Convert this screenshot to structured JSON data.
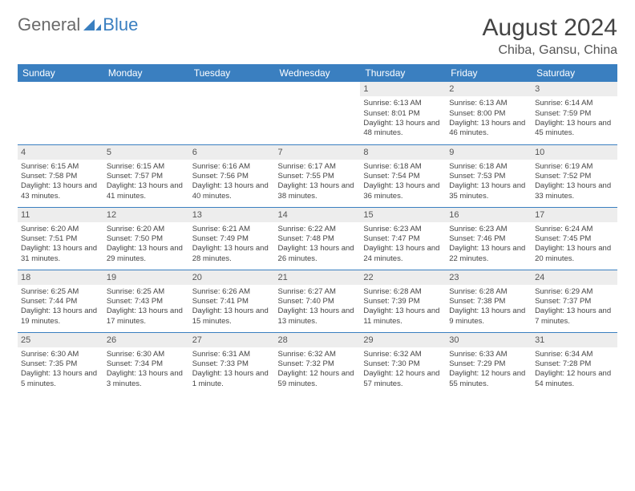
{
  "logo": {
    "part1": "General",
    "part2": "Blue"
  },
  "title": "August 2024",
  "location": "Chiba, Gansu, China",
  "weekdays": [
    "Sunday",
    "Monday",
    "Tuesday",
    "Wednesday",
    "Thursday",
    "Friday",
    "Saturday"
  ],
  "colors": {
    "header_bg": "#3a7fc0",
    "header_fg": "#ffffff",
    "daynum_bg": "#ededed",
    "rule": "#3a7fc0",
    "logo_gray": "#6a6a6a",
    "logo_blue": "#3a7fc0"
  },
  "typography": {
    "title_fontsize": 30,
    "location_fontsize": 16,
    "weekday_fontsize": 12,
    "cell_fontsize": 9.5,
    "daynum_fontsize": 11
  },
  "layout": {
    "first_weekday_index": 4,
    "weeks": 5,
    "cols": 7
  },
  "days": {
    "1": {
      "sunrise": "6:13 AM",
      "sunset": "8:01 PM",
      "daylight": "13 hours and 48 minutes."
    },
    "2": {
      "sunrise": "6:13 AM",
      "sunset": "8:00 PM",
      "daylight": "13 hours and 46 minutes."
    },
    "3": {
      "sunrise": "6:14 AM",
      "sunset": "7:59 PM",
      "daylight": "13 hours and 45 minutes."
    },
    "4": {
      "sunrise": "6:15 AM",
      "sunset": "7:58 PM",
      "daylight": "13 hours and 43 minutes."
    },
    "5": {
      "sunrise": "6:15 AM",
      "sunset": "7:57 PM",
      "daylight": "13 hours and 41 minutes."
    },
    "6": {
      "sunrise": "6:16 AM",
      "sunset": "7:56 PM",
      "daylight": "13 hours and 40 minutes."
    },
    "7": {
      "sunrise": "6:17 AM",
      "sunset": "7:55 PM",
      "daylight": "13 hours and 38 minutes."
    },
    "8": {
      "sunrise": "6:18 AM",
      "sunset": "7:54 PM",
      "daylight": "13 hours and 36 minutes."
    },
    "9": {
      "sunrise": "6:18 AM",
      "sunset": "7:53 PM",
      "daylight": "13 hours and 35 minutes."
    },
    "10": {
      "sunrise": "6:19 AM",
      "sunset": "7:52 PM",
      "daylight": "13 hours and 33 minutes."
    },
    "11": {
      "sunrise": "6:20 AM",
      "sunset": "7:51 PM",
      "daylight": "13 hours and 31 minutes."
    },
    "12": {
      "sunrise": "6:20 AM",
      "sunset": "7:50 PM",
      "daylight": "13 hours and 29 minutes."
    },
    "13": {
      "sunrise": "6:21 AM",
      "sunset": "7:49 PM",
      "daylight": "13 hours and 28 minutes."
    },
    "14": {
      "sunrise": "6:22 AM",
      "sunset": "7:48 PM",
      "daylight": "13 hours and 26 minutes."
    },
    "15": {
      "sunrise": "6:23 AM",
      "sunset": "7:47 PM",
      "daylight": "13 hours and 24 minutes."
    },
    "16": {
      "sunrise": "6:23 AM",
      "sunset": "7:46 PM",
      "daylight": "13 hours and 22 minutes."
    },
    "17": {
      "sunrise": "6:24 AM",
      "sunset": "7:45 PM",
      "daylight": "13 hours and 20 minutes."
    },
    "18": {
      "sunrise": "6:25 AM",
      "sunset": "7:44 PM",
      "daylight": "13 hours and 19 minutes."
    },
    "19": {
      "sunrise": "6:25 AM",
      "sunset": "7:43 PM",
      "daylight": "13 hours and 17 minutes."
    },
    "20": {
      "sunrise": "6:26 AM",
      "sunset": "7:41 PM",
      "daylight": "13 hours and 15 minutes."
    },
    "21": {
      "sunrise": "6:27 AM",
      "sunset": "7:40 PM",
      "daylight": "13 hours and 13 minutes."
    },
    "22": {
      "sunrise": "6:28 AM",
      "sunset": "7:39 PM",
      "daylight": "13 hours and 11 minutes."
    },
    "23": {
      "sunrise": "6:28 AM",
      "sunset": "7:38 PM",
      "daylight": "13 hours and 9 minutes."
    },
    "24": {
      "sunrise": "6:29 AM",
      "sunset": "7:37 PM",
      "daylight": "13 hours and 7 minutes."
    },
    "25": {
      "sunrise": "6:30 AM",
      "sunset": "7:35 PM",
      "daylight": "13 hours and 5 minutes."
    },
    "26": {
      "sunrise": "6:30 AM",
      "sunset": "7:34 PM",
      "daylight": "13 hours and 3 minutes."
    },
    "27": {
      "sunrise": "6:31 AM",
      "sunset": "7:33 PM",
      "daylight": "13 hours and 1 minute."
    },
    "28": {
      "sunrise": "6:32 AM",
      "sunset": "7:32 PM",
      "daylight": "12 hours and 59 minutes."
    },
    "29": {
      "sunrise": "6:32 AM",
      "sunset": "7:30 PM",
      "daylight": "12 hours and 57 minutes."
    },
    "30": {
      "sunrise": "6:33 AM",
      "sunset": "7:29 PM",
      "daylight": "12 hours and 55 minutes."
    },
    "31": {
      "sunrise": "6:34 AM",
      "sunset": "7:28 PM",
      "daylight": "12 hours and 54 minutes."
    }
  }
}
